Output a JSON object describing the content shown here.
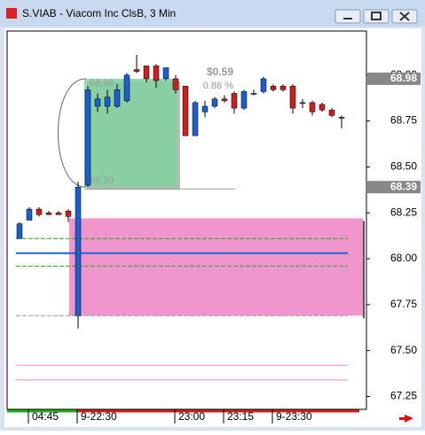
{
  "window_title": "S.VIAB - Viacom Inc ClsB, 3 Min",
  "chart_data": {
    "type": "candlestick",
    "categories": [
      null,
      "04:45",
      null,
      null,
      null,
      null,
      "9-22:30",
      null,
      null,
      null,
      null,
      null,
      null,
      null,
      null,
      null,
      "23:00",
      null,
      null,
      null,
      null,
      "23:15",
      null,
      null,
      null,
      null,
      "9-23:30",
      null,
      null,
      null,
      null,
      null,
      null,
      null
    ],
    "open": [
      68.11,
      68.21,
      68.27,
      68.25,
      68.25,
      68.26,
      67.69,
      68.4,
      68.83,
      68.83,
      68.83,
      68.86,
      69.03,
      69.05,
      69.05,
      68.98,
      68.98,
      68.94,
      68.67,
      68.8,
      68.83,
      68.87,
      68.9,
      68.82,
      68.9,
      68.91,
      68.94,
      68.94,
      68.94,
      68.85,
      68.85,
      68.84,
      68.81,
      68.77
    ],
    "high": [
      68.2,
      68.28,
      68.28,
      68.26,
      68.26,
      68.27,
      68.42,
      68.94,
      68.9,
      68.92,
      68.95,
      69.01,
      69.11,
      69.05,
      69.06,
      69.04,
      69.0,
      68.94,
      68.86,
      68.86,
      68.88,
      68.89,
      68.91,
      68.92,
      68.92,
      68.99,
      68.95,
      68.95,
      68.95,
      68.87,
      68.86,
      68.85,
      68.82,
      68.78
    ],
    "low": [
      68.11,
      68.21,
      68.23,
      68.24,
      68.24,
      68.2,
      67.62,
      68.39,
      68.8,
      68.79,
      68.82,
      68.85,
      69.01,
      68.96,
      68.93,
      68.97,
      68.9,
      68.67,
      68.67,
      68.77,
      68.82,
      68.85,
      68.79,
      68.81,
      68.89,
      68.9,
      68.91,
      68.91,
      68.79,
      68.82,
      68.78,
      68.8,
      68.77,
      68.71
    ],
    "close": [
      68.19,
      68.27,
      68.24,
      68.24,
      68.24,
      68.23,
      68.39,
      68.92,
      68.87,
      68.88,
      68.92,
      69.0,
      69.02,
      68.98,
      68.97,
      69.04,
      68.92,
      68.67,
      68.85,
      68.83,
      68.87,
      68.86,
      68.82,
      68.91,
      68.9,
      68.98,
      68.92,
      68.92,
      68.82,
      68.85,
      68.8,
      68.81,
      68.78,
      68.77
    ],
    "up_color": "#1a5fd0",
    "down_color": "#cc1f1f",
    "ylim": [
      67.18,
      69.24
    ],
    "yticks": [
      {
        "value": 67.25,
        "label": "67.25"
      },
      {
        "value": 67.5,
        "label": "67.50"
      },
      {
        "value": 67.75,
        "label": "67.75"
      },
      {
        "value": 68,
        "label": "68.00"
      },
      {
        "value": 68.25,
        "label": "68.25"
      },
      {
        "value": 68.5,
        "label": "68.50"
      },
      {
        "value": 68.75,
        "label": "68.75"
      },
      {
        "value": 69,
        "label": "69.00"
      }
    ],
    "price_markers": [
      68.98,
      68.39
    ],
    "measure": {
      "change": "$0.59",
      "percent": "0.86 %",
      "high": 68.98,
      "low": 68.39,
      "color": "#7fd4a0"
    },
    "zone": {
      "high": 68.22,
      "low": 67.69,
      "color": "#f08ac8"
    },
    "levels": [
      {
        "value": 68.11,
        "color": "#22aa22",
        "style": "dashed"
      },
      {
        "value": 68.03,
        "color": "#2266cc",
        "style": "solid"
      },
      {
        "value": 67.96,
        "color": "#22aa22",
        "style": "dashed"
      },
      {
        "value": 67.69,
        "color": "#999999",
        "style": "dashed"
      },
      {
        "value": 67.42,
        "color": "#f08ac8",
        "style": "solid"
      },
      {
        "value": 67.34,
        "color": "#f08ac8",
        "style": "solid"
      }
    ]
  }
}
